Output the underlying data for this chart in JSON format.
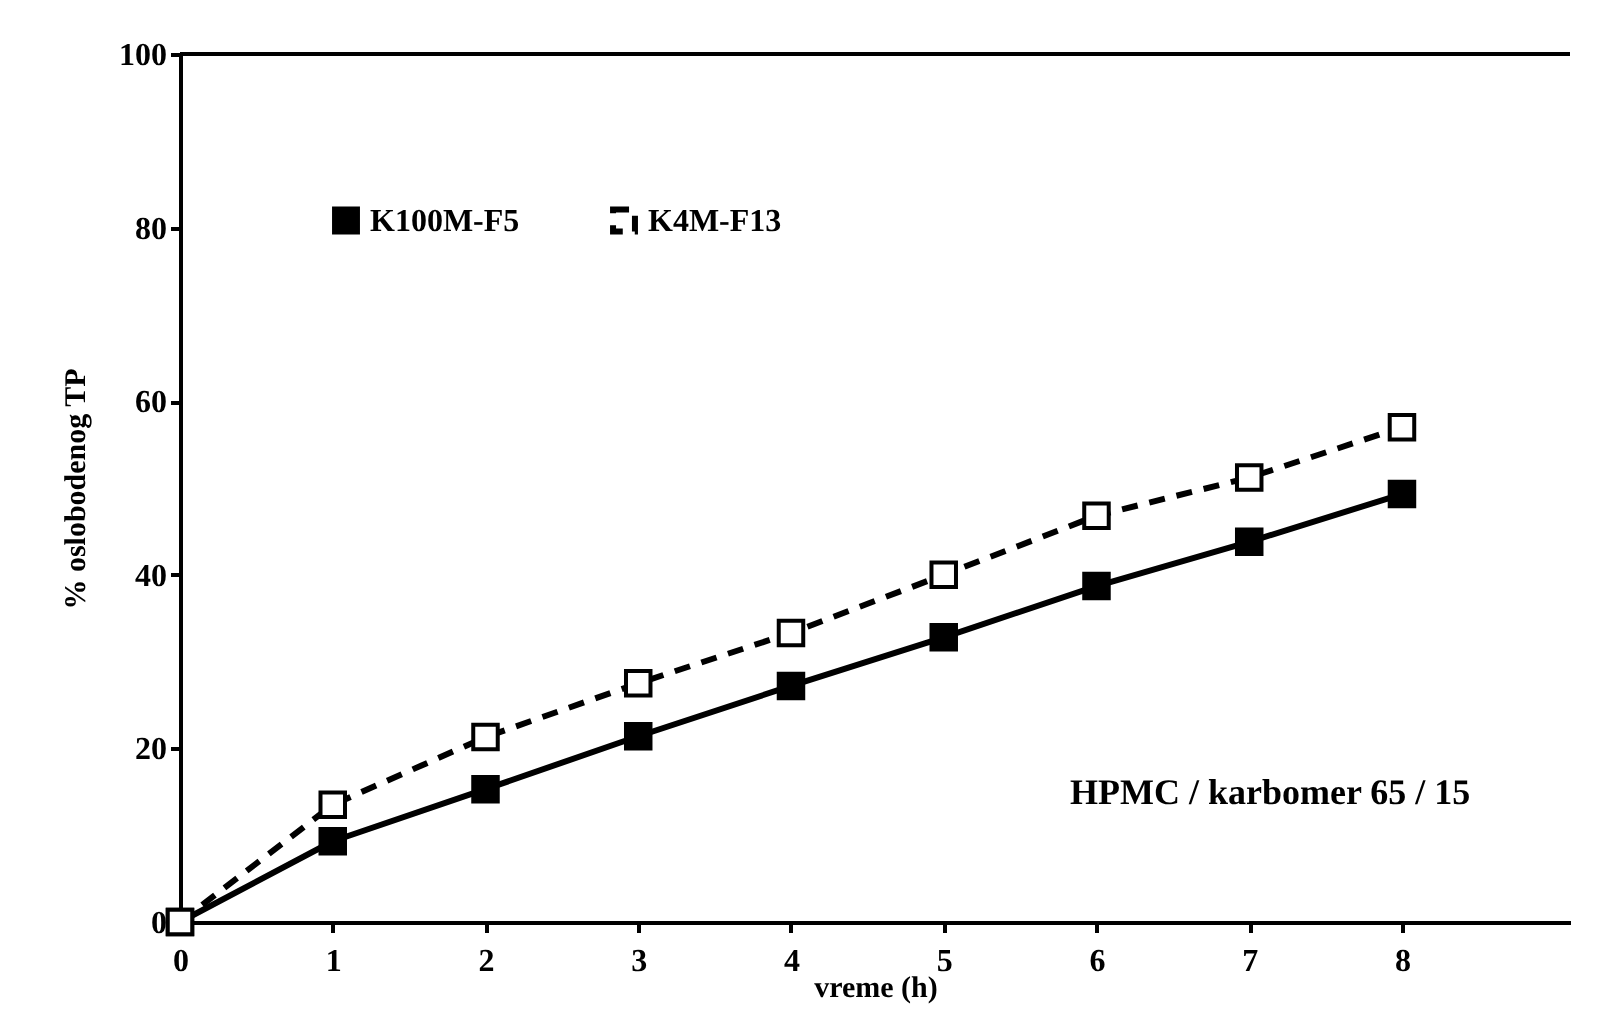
{
  "chart_data": {
    "type": "line",
    "xlabel": "vreme (h)",
    "ylabel": "% oslobodenog TP",
    "x": [
      0,
      1,
      2,
      3,
      4,
      5,
      6,
      7,
      8
    ],
    "series": [
      {
        "name": "K100M-F5",
        "color": "#000000",
        "marker": "square",
        "line_style": "solid",
        "values": [
          0,
          9.3,
          15.3,
          21.4,
          27.2,
          32.8,
          38.7,
          43.8,
          49.3
        ]
      },
      {
        "name": "K4M-F13",
        "color": "#000000",
        "marker": "square",
        "line_style": "dashed",
        "values": [
          0,
          13.5,
          21.3,
          27.5,
          33.3,
          40.0,
          46.8,
          51.2,
          57.0
        ]
      }
    ],
    "xlim": [
      0,
      9.1
    ],
    "xticks": [
      0,
      1,
      2,
      3,
      4,
      5,
      6,
      7,
      8
    ],
    "ylim": [
      0,
      100
    ],
    "yticks": [
      0,
      20,
      40,
      60,
      80,
      100
    ],
    "grid": false,
    "legend": "top left",
    "annotations": [
      "HPMC / karbomer  65 / 15"
    ]
  }
}
